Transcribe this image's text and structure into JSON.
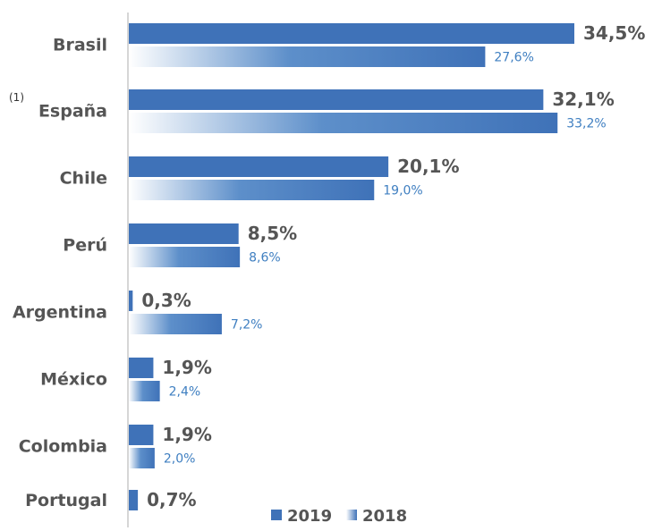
{
  "chart_data": {
    "type": "bar",
    "orientation": "horizontal",
    "categories": [
      "Brasil",
      "España",
      "Chile",
      "Perú",
      "Argentina",
      "México",
      "Colombia",
      "Portugal"
    ],
    "series": [
      {
        "name": "2019",
        "values": [
          34.5,
          32.1,
          20.1,
          8.5,
          0.3,
          1.9,
          1.9,
          0.7
        ],
        "labels": [
          "34,5%",
          "32,1%",
          "20,1%",
          "8,5%",
          "0,3%",
          "1,9%",
          "1,9%",
          "0,7%"
        ],
        "color": "#3f72b8"
      },
      {
        "name": "2018",
        "values": [
          27.6,
          33.2,
          19.0,
          8.6,
          7.2,
          2.4,
          2.0,
          null
        ],
        "labels": [
          "27,6%",
          "33,2%",
          "19,0%",
          "8,6%",
          "7,2%",
          "2,4%",
          "2,0%",
          null
        ],
        "color": "#3f72b8"
      }
    ],
    "category_notes": {
      "España": "(1)"
    },
    "legend": {
      "position": "bottom-right",
      "entries": [
        "2019",
        "2018"
      ]
    },
    "xlim": [
      0,
      34.5
    ],
    "grid": false
  }
}
